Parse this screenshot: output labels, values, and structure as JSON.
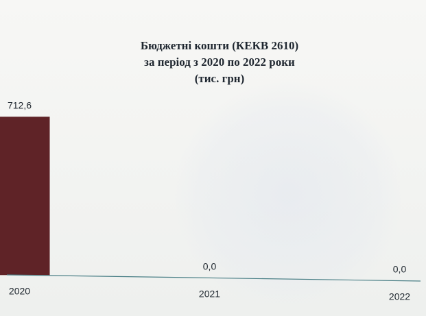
{
  "chart_data": {
    "type": "bar",
    "title_lines": [
      "Бюджетні кошти (КЕКВ 2610)",
      "за період з 2020 по 2022 роки",
      "(тис. грн)"
    ],
    "categories": [
      "2020",
      "2021",
      "2022"
    ],
    "values": [
      712.6,
      0.0,
      0.0
    ],
    "value_labels": [
      "712,6",
      "0,0",
      "0,0"
    ],
    "ylim": [
      0,
      712.6
    ],
    "grid": false,
    "legend": "none",
    "bar_color": "#5f2327",
    "axis_color": "#4a7f86"
  }
}
